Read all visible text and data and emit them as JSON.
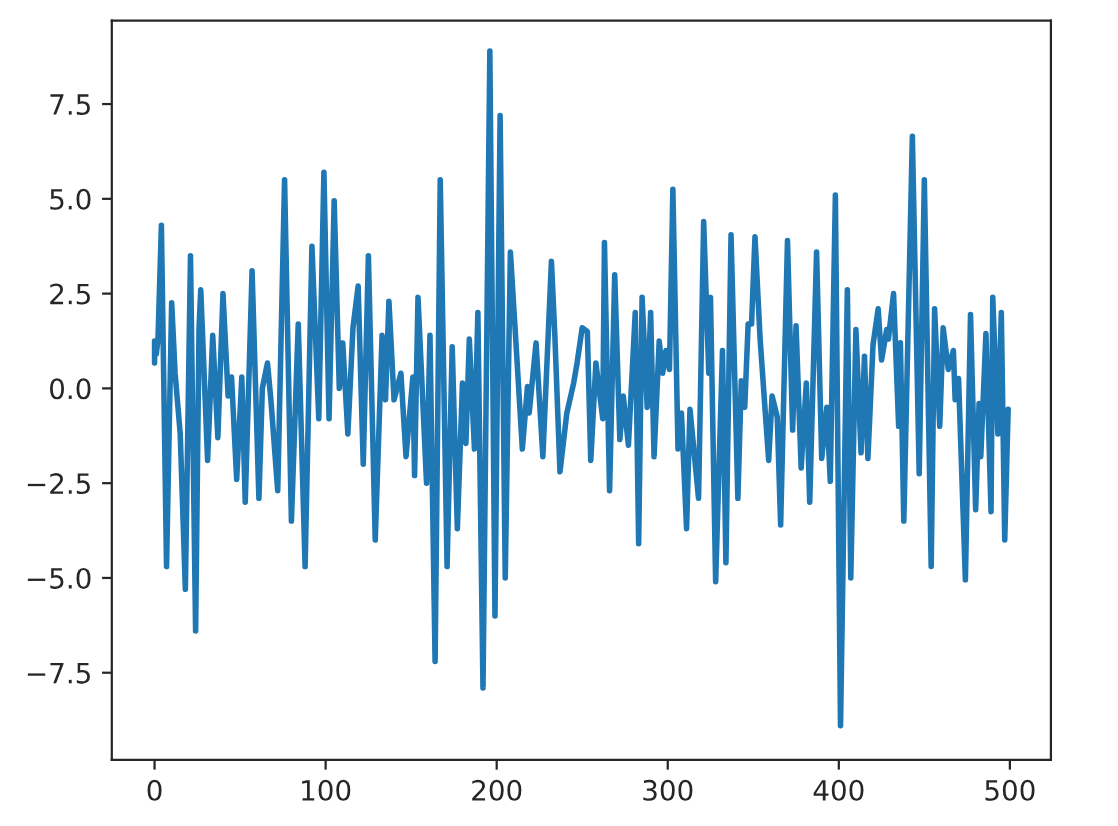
{
  "chart_data": {
    "type": "line",
    "x": [
      0,
      0,
      1,
      2,
      4,
      7,
      10,
      12,
      15,
      18,
      21,
      24,
      26,
      27,
      31,
      34,
      37,
      40,
      43,
      45,
      48,
      51,
      53,
      57,
      61,
      63,
      66,
      68,
      72,
      76,
      80,
      84,
      88,
      92,
      96,
      99,
      102,
      105,
      108,
      110,
      113,
      116,
      119,
      122,
      125,
      129,
      133,
      135,
      137,
      140,
      144,
      147,
      151,
      152,
      154,
      159,
      161,
      164,
      167,
      171,
      174,
      177,
      180,
      182,
      184,
      187,
      189,
      192,
      196,
      199,
      202,
      205,
      208,
      211,
      215,
      218,
      219,
      223,
      227,
      232,
      234,
      237,
      241,
      245,
      247,
      250,
      253,
      255,
      258,
      262,
      263,
      266,
      269,
      272,
      274,
      277,
      281,
      283,
      285,
      288,
      290,
      292,
      295,
      297,
      299,
      301,
      303,
      306,
      308,
      311,
      313,
      318,
      321,
      324,
      325,
      328,
      332,
      334,
      337,
      341,
      343,
      345,
      347,
      349,
      351,
      354,
      359,
      361,
      364,
      366,
      370,
      373,
      375,
      378,
      381,
      383,
      387,
      390,
      393,
      395,
      398,
      401,
      405,
      407,
      410,
      413,
      415,
      417,
      420,
      423,
      425,
      428,
      429,
      432,
      435,
      436,
      438,
      443,
      447,
      450,
      454,
      456,
      459,
      461,
      464,
      467,
      468,
      470,
      474,
      477,
      480,
      482,
      483,
      486,
      489,
      490,
      493,
      495,
      497,
      499
    ],
    "series": [
      {
        "color": "#1f77b4",
        "values": [
          0.67,
          1.25,
          0.9,
          1.3,
          4.3,
          -4.7,
          2.26,
          0.4,
          -1.2,
          -5.3,
          3.5,
          -6.4,
          1.6,
          2.6,
          -1.9,
          1.4,
          -1.3,
          2.5,
          -0.2,
          0.3,
          -2.4,
          0.3,
          -3.0,
          3.1,
          -2.9,
          0,
          0.67,
          -0.3,
          -2.7,
          5.5,
          -3.5,
          1.7,
          -4.7,
          3.75,
          -0.8,
          5.7,
          -0.8,
          4.95,
          0,
          1.2,
          -1.2,
          1.6,
          2.7,
          -2.0,
          3.5,
          -4.0,
          1.4,
          -0.3,
          2.3,
          -0.3,
          0.4,
          -1.8,
          0.3,
          -2.3,
          2.4,
          -2.5,
          1.4,
          -7.2,
          5.5,
          -4.7,
          1.1,
          -3.7,
          0.14,
          -1.45,
          1.3,
          -1.6,
          2.0,
          -7.9,
          8.9,
          -6.0,
          7.2,
          -5.0,
          3.6,
          1.4,
          -1.6,
          0.05,
          -0.65,
          1.2,
          -1.8,
          3.35,
          1.4,
          -2.2,
          -0.65,
          0.14,
          0.67,
          1.6,
          1.5,
          -1.9,
          0.67,
          -0.8,
          3.85,
          -2.7,
          3.0,
          -1.35,
          -0.2,
          -1.5,
          2.0,
          -4.1,
          2.4,
          -0.5,
          2.0,
          -1.8,
          1.25,
          0.4,
          1.0,
          0.5,
          5.25,
          -1.6,
          -0.65,
          -3.7,
          -0.55,
          -2.9,
          4.4,
          0.4,
          2.4,
          -5.1,
          1.0,
          -4.6,
          4.05,
          -2.9,
          0.2,
          -0.5,
          1.7,
          1.7,
          4.0,
          1.3,
          -1.9,
          -0.2,
          -0.75,
          -3.6,
          3.9,
          -1.1,
          1.65,
          -2.1,
          0.14,
          -3.0,
          3.6,
          -1.85,
          -0.5,
          -2.45,
          5.1,
          -8.9,
          2.6,
          -5.0,
          1.55,
          -1.7,
          0.85,
          -1.85,
          1.15,
          2.1,
          0.75,
          1.55,
          1.3,
          2.5,
          -1.0,
          1.2,
          -3.5,
          6.65,
          -2.25,
          5.5,
          -4.7,
          2.1,
          -1.0,
          1.6,
          0.5,
          1.0,
          -0.3,
          0.26,
          -5.05,
          1.95,
          -3.2,
          -0.4,
          -1.8,
          1.45,
          -3.25,
          2.4,
          -1.2,
          2.0,
          -4.0,
          -0.55
        ]
      }
    ],
    "xlim": [
      -25,
      524
    ],
    "ylim": [
      -9.8,
      9.7
    ],
    "xticks": [
      0,
      100,
      200,
      300,
      400,
      500
    ],
    "yticks": [
      {
        "value": -7.5,
        "label": "−7.5"
      },
      {
        "value": -5.0,
        "label": "−5.0"
      },
      {
        "value": -2.5,
        "label": "−2.5"
      },
      {
        "value": 0.0,
        "label": "0.0"
      },
      {
        "value": 2.5,
        "label": "2.5"
      },
      {
        "value": 5.0,
        "label": "5.0"
      },
      {
        "value": 7.5,
        "label": "7.5"
      }
    ],
    "grid": false,
    "legend": false,
    "line_style": "solid"
  }
}
